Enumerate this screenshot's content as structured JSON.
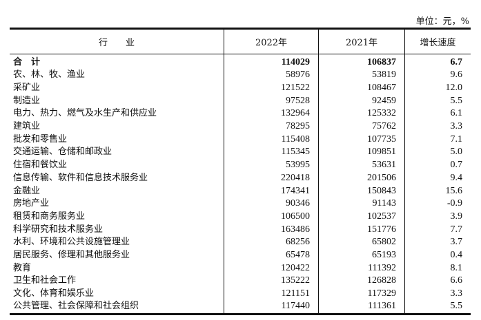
{
  "unit": "单位：元，%",
  "headers": [
    "行　　业",
    "2022年",
    "2021年",
    "增长速度"
  ],
  "rows": [
    [
      "合　计",
      "114029",
      "106837",
      "6.7"
    ],
    [
      "农、林、牧、渔业",
      "58976",
      "53819",
      "9.6"
    ],
    [
      "采矿业",
      "121522",
      "108467",
      "12.0"
    ],
    [
      "制造业",
      "97528",
      "92459",
      "5.5"
    ],
    [
      "电力、热力、燃气及水生产和供应业",
      "132964",
      "125332",
      "6.1"
    ],
    [
      "建筑业",
      "78295",
      "75762",
      "3.3"
    ],
    [
      "批发和零售业",
      "115408",
      "107735",
      "7.1"
    ],
    [
      "交通运输、仓储和邮政业",
      "115345",
      "109851",
      "5.0"
    ],
    [
      "住宿和餐饮业",
      "53995",
      "53631",
      "0.7"
    ],
    [
      "信息传输、软件和信息技术服务业",
      "220418",
      "201506",
      "9.4"
    ],
    [
      "金融业",
      "174341",
      "150843",
      "15.6"
    ],
    [
      "房地产业",
      "90346",
      "91143",
      "-0.9"
    ],
    [
      "租赁和商务服务业",
      "106500",
      "102537",
      "3.9"
    ],
    [
      "科学研究和技术服务业",
      "163486",
      "151776",
      "7.7"
    ],
    [
      "水利、环境和公共设施管理业",
      "68256",
      "65802",
      "3.7"
    ],
    [
      "居民服务、修理和其他服务业",
      "65478",
      "65193",
      "0.4"
    ],
    [
      "教育",
      "120422",
      "111392",
      "8.1"
    ],
    [
      "卫生和社会工作",
      "135222",
      "126828",
      "6.6"
    ],
    [
      "文化、体育和娱乐业",
      "121151",
      "117329",
      "3.3"
    ],
    [
      "公共管理、社会保障和社会组织",
      "117440",
      "111361",
      "5.5"
    ]
  ]
}
